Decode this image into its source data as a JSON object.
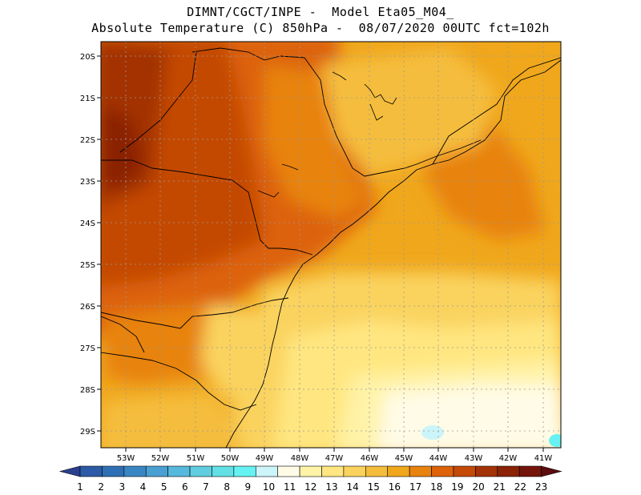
{
  "header": {
    "line1": "DIMNT/CGCT/INPE -  Model Eta05_M04_",
    "line2": "Absolute Temperature (C) 850hPa -  08/07/2020 00UTC fct=102h"
  },
  "map": {
    "lon_range": [
      -53.7,
      -40.5
    ],
    "lat_range": [
      -29.4,
      -19.9
    ],
    "lat_ticks": [
      "20S",
      "21S",
      "22S",
      "23S",
      "24S",
      "25S",
      "26S",
      "27S",
      "28S",
      "29S"
    ],
    "lon_ticks": [
      "53W",
      "52W",
      "51W",
      "50W",
      "49W",
      "48W",
      "47W",
      "46W",
      "45W",
      "44W",
      "43W",
      "42W",
      "41W"
    ],
    "grid": true
  },
  "colorbar": {
    "labels": [
      "1",
      "2",
      "3",
      "4",
      "5",
      "6",
      "7",
      "8",
      "9",
      "10",
      "11",
      "12",
      "13",
      "14",
      "15",
      "16",
      "17",
      "18",
      "19",
      "20",
      "21",
      "22",
      "23"
    ],
    "colors": [
      "#2a3f8f",
      "#2d5aa6",
      "#2f6fb5",
      "#3a86c5",
      "#4aa0d3",
      "#56b8dc",
      "#60cde0",
      "#63e0e6",
      "#66f2f2",
      "#ccf5fa",
      "#fffbe6",
      "#fff3a8",
      "#ffe680",
      "#fad35f",
      "#f5bd3c",
      "#f0a71c",
      "#e8830f",
      "#dd6209",
      "#c44a06",
      "#a33306",
      "#8a2205",
      "#74140a",
      "#5c0b10"
    ]
  }
}
